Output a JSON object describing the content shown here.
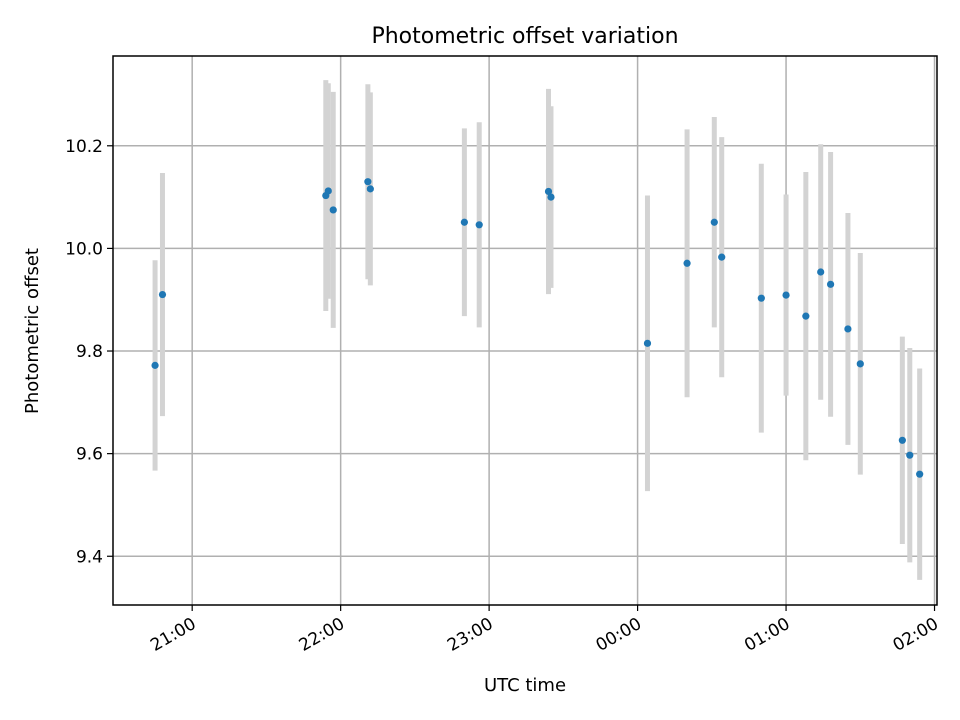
{
  "chart_data": {
    "type": "scatter",
    "title": "Photometric offset variation",
    "xlabel": "UTC time",
    "ylabel": "Photometric offset",
    "grid": true,
    "x_tick_labels": [
      "21:00",
      "22:00",
      "23:00",
      "00:00",
      "01:00",
      "02:00"
    ],
    "y_tick_labels": [
      "9.4",
      "9.6",
      "9.8",
      "10.0",
      "10.2"
    ],
    "x_range": [
      "20:28",
      "02:01"
    ],
    "y_range": [
      9.305,
      10.375
    ],
    "colors": {
      "point": "#1f77b4",
      "errorbar": "#d3d3d3",
      "grid": "#b0b0b0"
    },
    "series": [
      {
        "points": [
          {
            "x": "20:45",
            "y": 9.772,
            "yerr": 0.205
          },
          {
            "x": "20:48",
            "y": 9.91,
            "yerr": 0.237
          },
          {
            "x": "21:54",
            "y": 10.103,
            "yerr": 0.225
          },
          {
            "x": "21:55",
            "y": 10.112,
            "yerr": 0.21
          },
          {
            "x": "21:57",
            "y": 10.075,
            "yerr": 0.23
          },
          {
            "x": "22:11",
            "y": 10.13,
            "yerr": 0.19
          },
          {
            "x": "22:12",
            "y": 10.116,
            "yerr": 0.188
          },
          {
            "x": "22:50",
            "y": 10.051,
            "yerr": 0.183
          },
          {
            "x": "22:56",
            "y": 10.046,
            "yerr": 0.2
          },
          {
            "x": "23:24",
            "y": 10.111,
            "yerr": 0.2
          },
          {
            "x": "23:25",
            "y": 10.1,
            "yerr": 0.177
          },
          {
            "x": "00:04",
            "y": 9.815,
            "yerr": 0.288
          },
          {
            "x": "00:20",
            "y": 9.971,
            "yerr": 0.261
          },
          {
            "x": "00:31",
            "y": 10.051,
            "yerr": 0.205
          },
          {
            "x": "00:34",
            "y": 9.983,
            "yerr": 0.234
          },
          {
            "x": "00:50",
            "y": 9.903,
            "yerr": 0.262
          },
          {
            "x": "01:00",
            "y": 9.909,
            "yerr": 0.196
          },
          {
            "x": "01:08",
            "y": 9.868,
            "yerr": 0.281
          },
          {
            "x": "01:14",
            "y": 9.954,
            "yerr": 0.249
          },
          {
            "x": "01:18",
            "y": 9.93,
            "yerr": 0.258
          },
          {
            "x": "01:25",
            "y": 9.843,
            "yerr": 0.226
          },
          {
            "x": "01:30",
            "y": 9.775,
            "yerr": 0.216
          },
          {
            "x": "01:47",
            "y": 9.626,
            "yerr": 0.202
          },
          {
            "x": "01:50",
            "y": 9.597,
            "yerr": 0.209
          },
          {
            "x": "01:54",
            "y": 9.56,
            "yerr": 0.206
          }
        ]
      }
    ]
  }
}
